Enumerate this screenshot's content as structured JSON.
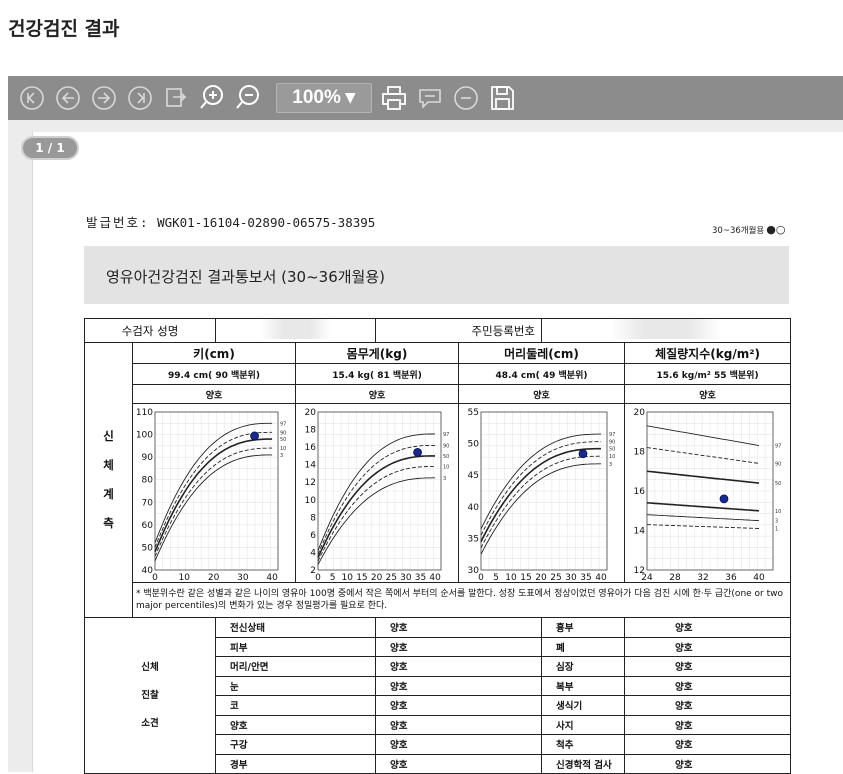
{
  "page": {
    "title": "건강검진 결과"
  },
  "toolbar": {
    "icons": [
      "first-page-icon",
      "prev-page-icon",
      "next-page-icon",
      "last-page-icon",
      "export-icon",
      "zoom-in-icon",
      "zoom-out-icon",
      "print-icon",
      "comment-icon",
      "minus-icon",
      "save-icon"
    ],
    "zoom": "100%"
  },
  "viewer": {
    "page_indicator": "1 / 1"
  },
  "doc": {
    "issue_label": "발급번호:",
    "issue_number": "WGK01-16104-02890-06575-38395",
    "age_tag": "30~36개월용",
    "age_marks": "●○",
    "title": "영유아건강검진 결과통보서 (30~36개월용)",
    "examinee_label": "수검자 성명",
    "rrn_label": "주민등록번호",
    "body_measure_label": "신\n체\n계\n측",
    "measures": [
      {
        "title": "키(cm)",
        "value": "99.4 cm(  90  백분위)",
        "status": "양호"
      },
      {
        "title": "몸무게(kg)",
        "value": "15.4 kg(  81  백분위)",
        "status": "양호"
      },
      {
        "title": "머리둘레(cm)",
        "value": "48.4 cm(  49  백분위)",
        "status": "양호"
      },
      {
        "title": "체질량지수(kg/m²)",
        "value": "15.6 kg/m²  55  백분위)",
        "status": "양호"
      }
    ],
    "note": "* 백분위수란 같은 성별과 같은 나이의 영유아 100명 중에서 작은 쪽에서 부터의 순서를 말한다. 성장 도표에서 정상이었던 영유아가 다음 검진 시에 한·두 급간(one or two major percentiles)의 변화가 있는 경우 정밀평가를 필요로 한다.",
    "exam_label": "신체\n진찰\n소견",
    "exam_rows": [
      {
        "item1": "전신상태",
        "res1": "양호",
        "item2": "흉부",
        "res2": "양호"
      },
      {
        "item1": "피부",
        "res1": "양호",
        "item2": "폐",
        "res2": "양호"
      },
      {
        "item1": "머리/안면",
        "res1": "양호",
        "item2": "심장",
        "res2": "양호"
      },
      {
        "item1": "눈",
        "res1": "양호",
        "item2": "복부",
        "res2": "양호"
      },
      {
        "item1": "코",
        "res1": "양호",
        "item2": "생식기",
        "res2": "양호"
      },
      {
        "item1": "양호",
        "res1": "양호",
        "item2": "사지",
        "res2": "양호"
      },
      {
        "item1": "구강",
        "res1": "양호",
        "item2": "척추",
        "res2": "양호"
      },
      {
        "item1": "경부",
        "res1": "양호",
        "item2": "신경학적 검사",
        "res2": "양호"
      }
    ]
  },
  "chart_data": [
    {
      "type": "line",
      "title": "키(cm)",
      "xlim": [
        0,
        42
      ],
      "ylim": [
        40,
        110
      ],
      "xticks": [
        "0",
        "10",
        "20",
        "30",
        "40"
      ],
      "yticks": [
        "40",
        "50",
        "60",
        "70",
        "80",
        "90",
        "100",
        "110"
      ],
      "curves": {
        "start": [
          52,
          50,
          48,
          46,
          44
        ],
        "end": [
          105,
          101,
          98,
          94,
          91
        ]
      },
      "point": {
        "x": 34,
        "y": 99.4
      }
    },
    {
      "type": "line",
      "title": "몸무게(kg)",
      "xlim": [
        0,
        42
      ],
      "ylim": [
        2,
        20
      ],
      "xticks": [
        "0",
        "5",
        "10",
        "15",
        "20",
        "25",
        "30",
        "35",
        "40"
      ],
      "yticks": [
        "2",
        "4",
        "6",
        "8",
        "10",
        "12",
        "14",
        "16",
        "18",
        "20"
      ],
      "curves": {
        "start": [
          4.2,
          3.8,
          3.4,
          3.0,
          2.6
        ],
        "end": [
          17.5,
          16.2,
          15.0,
          13.8,
          12.5
        ]
      },
      "point": {
        "x": 34,
        "y": 15.4
      }
    },
    {
      "type": "line",
      "title": "머리둘레(cm)",
      "xlim": [
        0,
        42
      ],
      "ylim": [
        30,
        55
      ],
      "xticks": [
        "0",
        "5",
        "10",
        "15",
        "20",
        "25",
        "30",
        "35",
        "40"
      ],
      "yticks": [
        "30",
        "35",
        "40",
        "45",
        "50",
        "55"
      ],
      "curves": {
        "start": [
          36.5,
          35.5,
          34.5,
          33.5,
          32.5
        ],
        "end": [
          51.5,
          50.3,
          49.2,
          48.0,
          46.8
        ]
      },
      "point": {
        "x": 34,
        "y": 48.4
      }
    },
    {
      "type": "line",
      "title": "체질량지수(kg/m²)",
      "xlim": [
        24,
        42
      ],
      "ylim": [
        12,
        20
      ],
      "xticks": [
        "24",
        "28",
        "32",
        "36",
        "40"
      ],
      "yticks": [
        "12",
        "14",
        "16",
        "18",
        "20"
      ],
      "curves": {
        "start": [
          19.3,
          18.2,
          17.0,
          15.4,
          14.8,
          14.3
        ],
        "end": [
          18.3,
          17.4,
          16.4,
          15.0,
          14.5,
          14.1
        ]
      },
      "point": {
        "x": 35,
        "y": 15.6
      }
    }
  ]
}
